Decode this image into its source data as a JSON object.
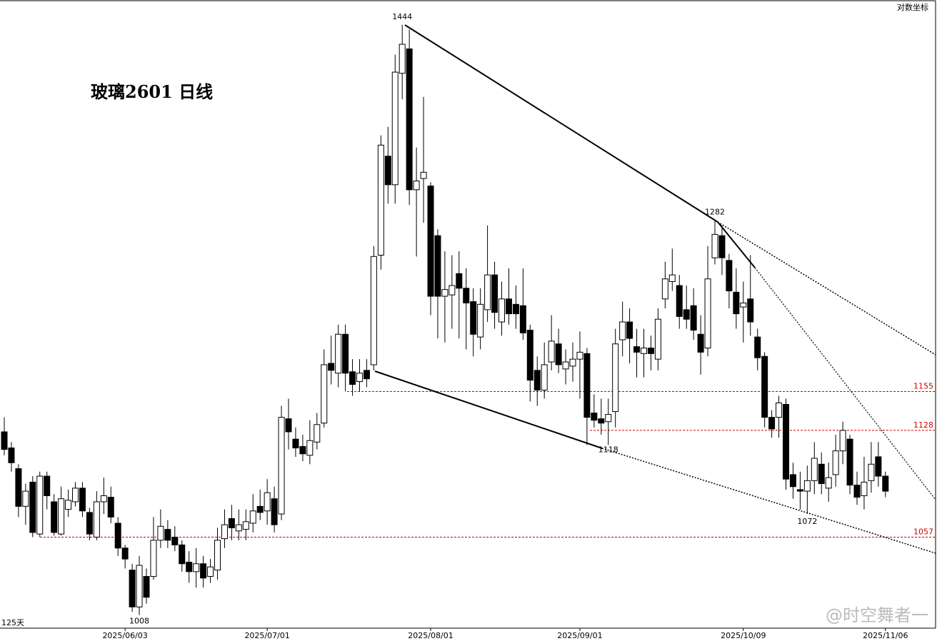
{
  "chart_data": {
    "type": "candlestick",
    "title": "玻璃2601 日线",
    "scale_label": "对数坐标",
    "period_label": "125天",
    "watermark": "@时空舞者一",
    "log": true,
    "ylim": [
      1000,
      1466
    ],
    "up_color": "#ffffff",
    "down_color": "#000000",
    "level_color": "#d00000",
    "categories": [
      null,
      null,
      null,
      null,
      null,
      null,
      null,
      null,
      null,
      null,
      null,
      null,
      null,
      null,
      null,
      null,
      null,
      "2025/06/03",
      null,
      null,
      null,
      null,
      null,
      null,
      null,
      null,
      null,
      null,
      null,
      null,
      null,
      null,
      null,
      null,
      null,
      null,
      null,
      "2025/07/01",
      null,
      null,
      null,
      null,
      null,
      null,
      null,
      null,
      null,
      null,
      null,
      null,
      null,
      null,
      null,
      null,
      null,
      null,
      null,
      null,
      null,
      null,
      "2025/08/01",
      null,
      null,
      null,
      null,
      null,
      null,
      null,
      null,
      null,
      null,
      null,
      null,
      null,
      null,
      null,
      null,
      null,
      null,
      null,
      null,
      "2025/09/01",
      null,
      null,
      null,
      null,
      null,
      null,
      null,
      null,
      null,
      null,
      null,
      null,
      null,
      null,
      null,
      null,
      null,
      null,
      null,
      null,
      null,
      null,
      "2025/10/09",
      null,
      null,
      null,
      null,
      null,
      null,
      null,
      null,
      null,
      null,
      null,
      null,
      null,
      null,
      null,
      null,
      null,
      null,
      null,
      "2025/11/06"
    ],
    "ohlc": [
      [
        1127,
        1137,
        1111,
        1115
      ],
      [
        1116,
        1120,
        1100,
        1106
      ],
      [
        1102,
        1105,
        1070,
        1077
      ],
      [
        1077,
        1092,
        1065,
        1087
      ],
      [
        1093,
        1097,
        1057,
        1060
      ],
      [
        1059,
        1100,
        1057,
        1097
      ],
      [
        1097,
        1100,
        1075,
        1084
      ],
      [
        1080,
        1085,
        1058,
        1060
      ],
      [
        1059,
        1090,
        1058,
        1082
      ],
      [
        1075,
        1088,
        1070,
        1081
      ],
      [
        1080,
        1093,
        1077,
        1089
      ],
      [
        1089,
        1093,
        1070,
        1074
      ],
      [
        1073,
        1076,
        1055,
        1059
      ],
      [
        1057,
        1087,
        1055,
        1080
      ],
      [
        1080,
        1096,
        1072,
        1084
      ],
      [
        1083,
        1090,
        1066,
        1070
      ],
      [
        1066,
        1070,
        1045,
        1050
      ],
      [
        1050,
        1052,
        1037,
        1043
      ],
      [
        1036,
        1040,
        1010,
        1013
      ],
      [
        1013,
        1045,
        1008,
        1039
      ],
      [
        1032,
        1037,
        1015,
        1019
      ],
      [
        1032,
        1070,
        1030,
        1055
      ],
      [
        1055,
        1075,
        1050,
        1064
      ],
      [
        1062,
        1068,
        1050,
        1055
      ],
      [
        1057,
        1064,
        1048,
        1052
      ],
      [
        1052,
        1055,
        1035,
        1040
      ],
      [
        1041,
        1048,
        1028,
        1035
      ],
      [
        1035,
        1050,
        1025,
        1040
      ],
      [
        1040,
        1045,
        1025,
        1031
      ],
      [
        1032,
        1043,
        1028,
        1038
      ],
      [
        1036,
        1063,
        1030,
        1055
      ],
      [
        1056,
        1075,
        1050,
        1065
      ],
      [
        1069,
        1078,
        1055,
        1063
      ],
      [
        1061,
        1075,
        1055,
        1065
      ],
      [
        1062,
        1075,
        1055,
        1067
      ],
      [
        1066,
        1085,
        1060,
        1074
      ],
      [
        1077,
        1088,
        1068,
        1073
      ],
      [
        1074,
        1095,
        1065,
        1086
      ],
      [
        1082,
        1090,
        1060,
        1065
      ],
      [
        1072,
        1145,
        1068,
        1137
      ],
      [
        1136,
        1150,
        1115,
        1127
      ],
      [
        1122,
        1130,
        1110,
        1116
      ],
      [
        1117,
        1125,
        1107,
        1112
      ],
      [
        1111,
        1135,
        1105,
        1121
      ],
      [
        1120,
        1140,
        1115,
        1132
      ],
      [
        1133,
        1185,
        1130,
        1174
      ],
      [
        1175,
        1195,
        1160,
        1170
      ],
      [
        1168,
        1203,
        1158,
        1196
      ],
      [
        1196,
        1203,
        1155,
        1168
      ],
      [
        1169,
        1178,
        1152,
        1160
      ],
      [
        1162,
        1178,
        1155,
        1168
      ],
      [
        1170,
        1178,
        1158,
        1164
      ],
      [
        1174,
        1262,
        1170,
        1254
      ],
      [
        1255,
        1350,
        1244,
        1342
      ],
      [
        1333,
        1357,
        1295,
        1310
      ],
      [
        1310,
        1418,
        1295,
        1403
      ],
      [
        1402,
        1444,
        1380,
        1427
      ],
      [
        1423,
        1440,
        1294,
        1306
      ],
      [
        1306,
        1340,
        1254,
        1313
      ],
      [
        1315,
        1382,
        1280,
        1320
      ],
      [
        1309,
        1312,
        1210,
        1224
      ],
      [
        1270,
        1275,
        1193,
        1224
      ],
      [
        1224,
        1258,
        1190,
        1229
      ],
      [
        1225,
        1255,
        1200,
        1232
      ],
      [
        1241,
        1258,
        1193,
        1230
      ],
      [
        1230,
        1245,
        1185,
        1219
      ],
      [
        1220,
        1230,
        1180,
        1196
      ],
      [
        1194,
        1230,
        1185,
        1218
      ],
      [
        1214,
        1278,
        1205,
        1240
      ],
      [
        1240,
        1250,
        1200,
        1212
      ],
      [
        1205,
        1235,
        1195,
        1222
      ],
      [
        1222,
        1245,
        1203,
        1211
      ],
      [
        1218,
        1232,
        1200,
        1211
      ],
      [
        1217,
        1245,
        1192,
        1197
      ],
      [
        1199,
        1203,
        1148,
        1163
      ],
      [
        1170,
        1180,
        1145,
        1156
      ],
      [
        1156,
        1190,
        1150,
        1174
      ],
      [
        1176,
        1210,
        1170,
        1191
      ],
      [
        1189,
        1200,
        1168,
        1174
      ],
      [
        1171,
        1185,
        1160,
        1176
      ],
      [
        1173,
        1190,
        1162,
        1178
      ],
      [
        1178,
        1198,
        1150,
        1183
      ],
      [
        1182,
        1186,
        1118,
        1137
      ],
      [
        1140,
        1153,
        1130,
        1135
      ],
      [
        1136,
        1150,
        1125,
        1133
      ],
      [
        1134,
        1150,
        1118,
        1139
      ],
      [
        1141,
        1200,
        1130,
        1189
      ],
      [
        1192,
        1220,
        1180,
        1205
      ],
      [
        1205,
        1215,
        1175,
        1193
      ],
      [
        1187,
        1200,
        1165,
        1183
      ],
      [
        1182,
        1200,
        1165,
        1186
      ],
      [
        1186,
        1195,
        1170,
        1182
      ],
      [
        1178,
        1215,
        1170,
        1207
      ],
      [
        1222,
        1250,
        1215,
        1237
      ],
      [
        1235,
        1260,
        1228,
        1240
      ],
      [
        1232,
        1240,
        1200,
        1209
      ],
      [
        1214,
        1232,
        1200,
        1207
      ],
      [
        1217,
        1230,
        1192,
        1199
      ],
      [
        1196,
        1210,
        1167,
        1183
      ],
      [
        1186,
        1262,
        1180,
        1237
      ],
      [
        1253,
        1282,
        1248,
        1271
      ],
      [
        1270,
        1278,
        1240,
        1253
      ],
      [
        1251,
        1256,
        1215,
        1228
      ],
      [
        1227,
        1245,
        1200,
        1211
      ],
      [
        1216,
        1235,
        1190,
        1219
      ],
      [
        1222,
        1255,
        1195,
        1205
      ],
      [
        1194,
        1200,
        1170,
        1179
      ],
      [
        1180,
        1183,
        1130,
        1137
      ],
      [
        1137,
        1142,
        1123,
        1129
      ],
      [
        1137,
        1152,
        1123,
        1147
      ],
      [
        1146,
        1150,
        1088,
        1095
      ],
      [
        1098,
        1106,
        1082,
        1090
      ],
      [
        1088,
        1100,
        1075,
        1087
      ],
      [
        1087,
        1104,
        1072,
        1094
      ],
      [
        1094,
        1120,
        1085,
        1109
      ],
      [
        1105,
        1113,
        1085,
        1092
      ],
      [
        1089,
        1106,
        1080,
        1096
      ],
      [
        1098,
        1125,
        1090,
        1114
      ],
      [
        1114,
        1134,
        1105,
        1128
      ],
      [
        1122,
        1125,
        1085,
        1091
      ],
      [
        1091,
        1100,
        1078,
        1083
      ],
      [
        1084,
        1110,
        1075,
        1093
      ],
      [
        1094,
        1120,
        1086,
        1105
      ],
      [
        1110,
        1120,
        1090,
        1097
      ],
      [
        1097,
        1100,
        1083,
        1087
      ]
    ],
    "levels": [
      1155,
      1128,
      1057
    ],
    "point_labels": [
      1444,
      1282,
      1118,
      1072,
      1008
    ]
  }
}
